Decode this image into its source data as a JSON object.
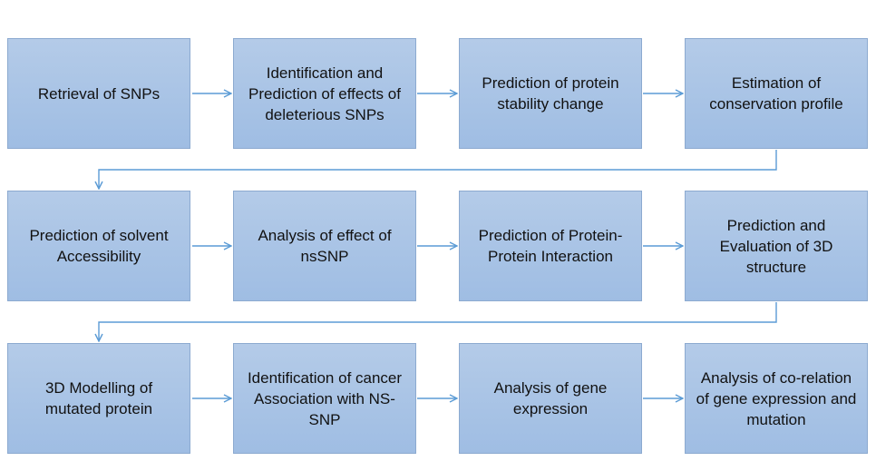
{
  "colors": {
    "box_fill": "#a9c4e6",
    "box_border": "#8caad0",
    "arrow": "#5b9bd5",
    "text": "#111111"
  },
  "rows": [
    {
      "steps": [
        "Retrieval of SNPs",
        "Identification and Prediction of effects of deleterious SNPs",
        "Prediction of protein stability change",
        "Estimation of conservation profile"
      ]
    },
    {
      "steps": [
        "Prediction of solvent Accessibility",
        "Analysis of effect of nsSNP",
        "Prediction of Protein-Protein Interaction",
        "Prediction and Evaluation of 3D structure"
      ]
    },
    {
      "steps": [
        "3D Modelling of mutated protein",
        "Identification of cancer Association with NS-SNP",
        "Analysis of gene expression",
        "Analysis of co-relation of gene expression and mutation"
      ]
    }
  ]
}
